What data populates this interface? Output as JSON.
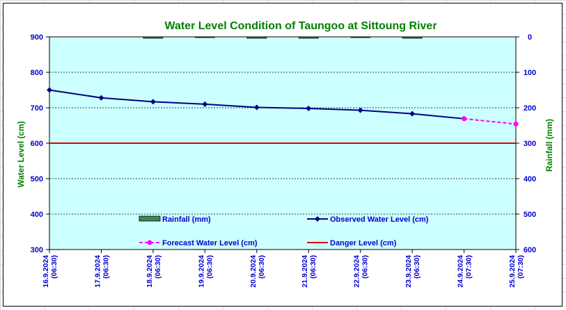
{
  "chart_data": {
    "type": "line",
    "title": "Water Level Condition of Taungoo at  Sittoung River",
    "ylabel": "Water Level (cm)",
    "y2label": "Rainfall (mm)",
    "ylim": [
      300,
      900
    ],
    "y_ticks": [
      300,
      400,
      500,
      600,
      700,
      800,
      900
    ],
    "y2lim": [
      0,
      600
    ],
    "y2_ticks": [
      0,
      100,
      200,
      300,
      400,
      500,
      600
    ],
    "y2_inverted": true,
    "categories": [
      [
        "16.9.2024",
        "(06:30)"
      ],
      [
        "17.9.2024",
        "(06:30)"
      ],
      [
        "18.9.2024",
        "(06:30)"
      ],
      [
        "19.9.2024",
        "(06:30)"
      ],
      [
        "20.9.2024",
        "(06:30)"
      ],
      [
        "21.9.2024",
        "(06:30)"
      ],
      [
        "22.9.2024",
        "(06:30)"
      ],
      [
        "23.9.2024",
        "(06:30)"
      ],
      [
        "24.9.2024",
        "(07:30)"
      ],
      [
        "25.9.2024",
        "(07:30)"
      ]
    ],
    "series": [
      {
        "name": "Rainfall (mm)",
        "kind": "bar",
        "axis": "y2",
        "color": "#3a8a56",
        "values": [
          null,
          null,
          4,
          1,
          4,
          4,
          1,
          4,
          null,
          null
        ]
      },
      {
        "name": "Observed Water Level (cm)",
        "kind": "line",
        "axis": "y",
        "color": "#000080",
        "values": [
          750,
          728,
          717,
          710,
          701,
          698,
          693,
          683,
          669,
          null
        ]
      },
      {
        "name": "Forecast Water Level (cm)",
        "kind": "line-dashed",
        "axis": "y",
        "color": "#ff00ff",
        "values": [
          null,
          null,
          null,
          null,
          null,
          null,
          null,
          null,
          669,
          654
        ]
      },
      {
        "name": "Danger Level (cm)",
        "kind": "hline",
        "axis": "y",
        "color": "#e00000",
        "value": 600
      }
    ],
    "plot_background": "#ccffff",
    "grid": true,
    "legend_position": "inside-bottom"
  }
}
